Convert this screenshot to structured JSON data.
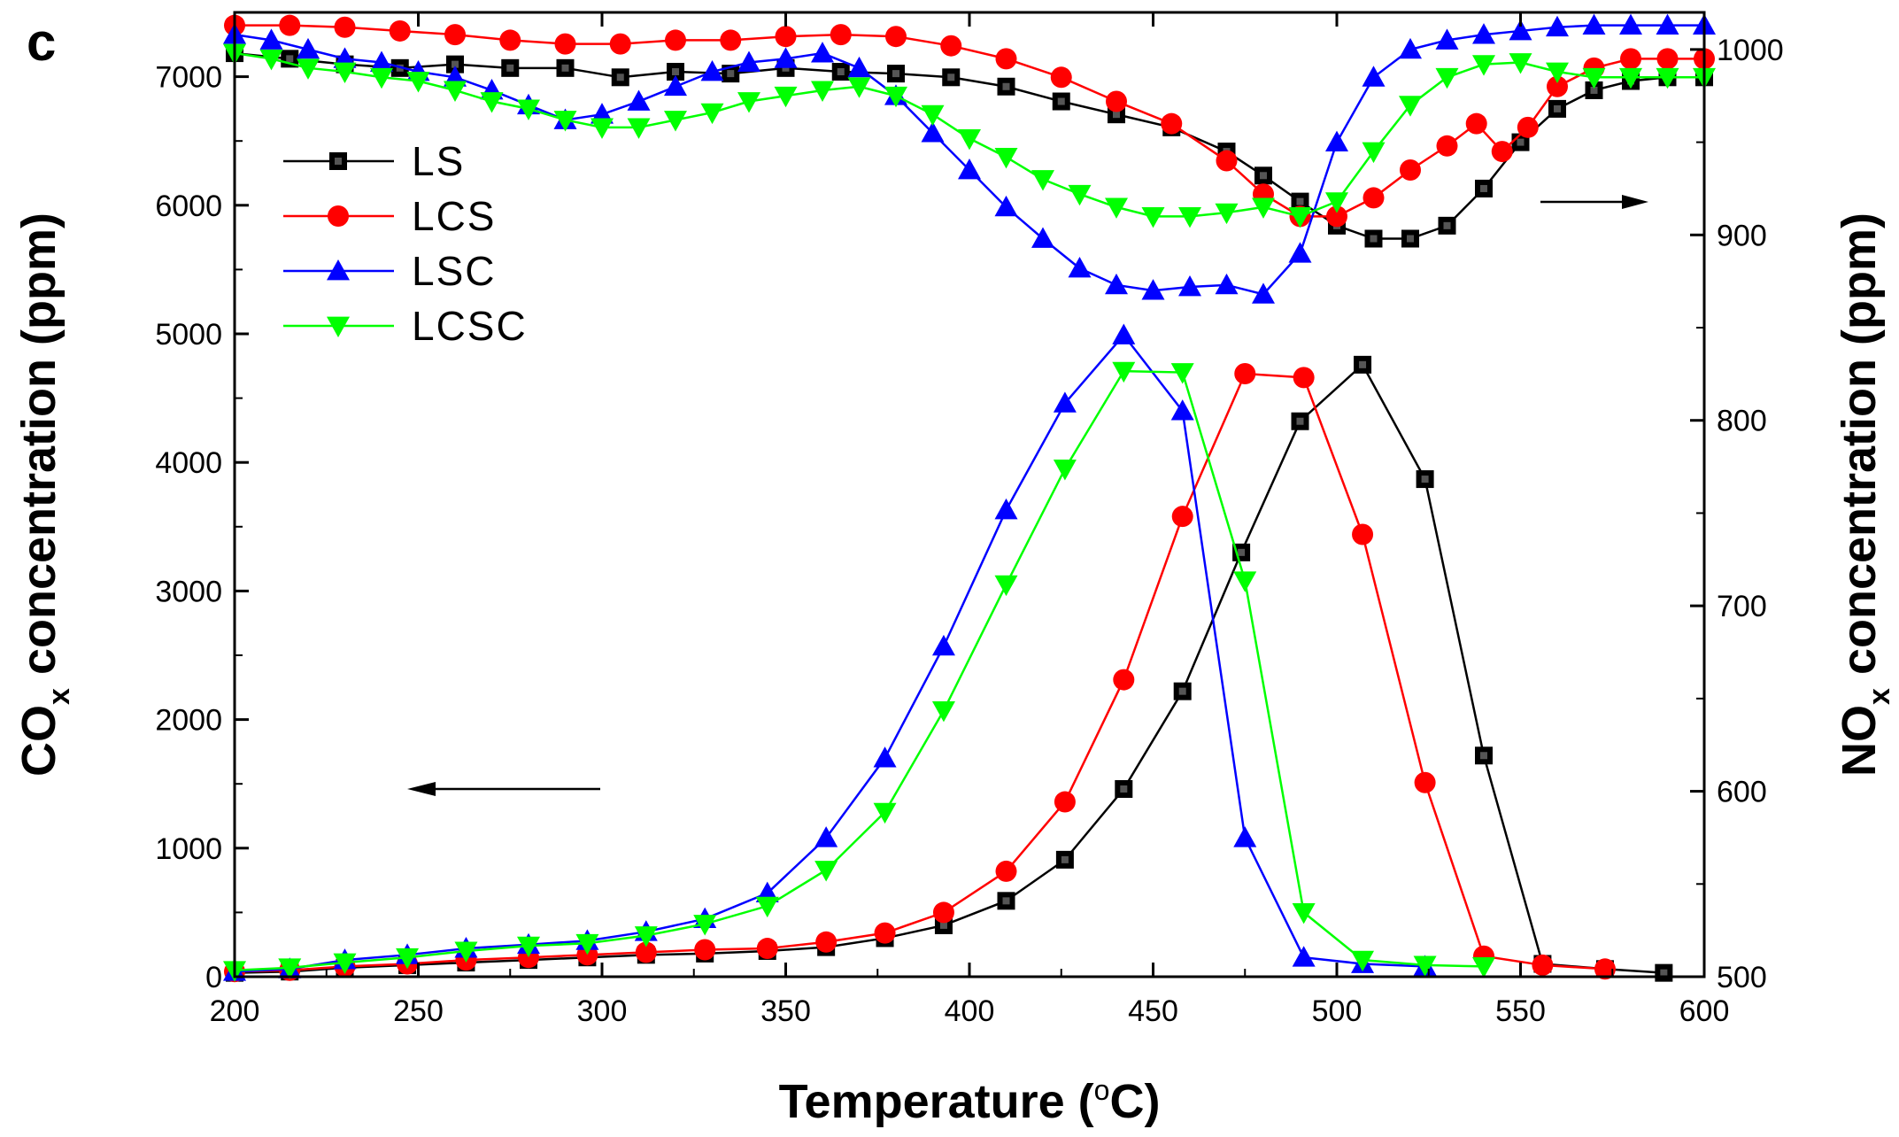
{
  "chart_data": {
    "type": "line",
    "panel_label": "c",
    "xlabel": {
      "main": "Temperature (",
      "sup": "o",
      "tail": "C)"
    },
    "ylabel_left": {
      "main": "CO",
      "sub": "x",
      "tail": " concentration (ppm)"
    },
    "ylabel_right": {
      "main": "NO",
      "sub": "x",
      "tail": " concentration (ppm)"
    },
    "xlim": [
      200,
      600
    ],
    "ylim_left": [
      0,
      7500
    ],
    "ylim_right": [
      500,
      1020
    ],
    "x_ticks": [
      200,
      250,
      300,
      350,
      400,
      450,
      500,
      550,
      600
    ],
    "y_left_ticks": [
      0,
      1000,
      2000,
      3000,
      4000,
      5000,
      6000,
      7000
    ],
    "y_right_ticks": [
      500,
      600,
      700,
      800,
      900,
      1000
    ],
    "legend_position": "top-left",
    "series": [
      {
        "name": "LS",
        "color": "#000000",
        "marker": "square",
        "cox": {
          "x": [
            200,
            215,
            230,
            247,
            263,
            280,
            296,
            312,
            328,
            345,
            361,
            377,
            393,
            410,
            426,
            442,
            458,
            474,
            490,
            507,
            524,
            540,
            556,
            573,
            589
          ],
          "y": [
            30,
            40,
            70,
            90,
            110,
            130,
            150,
            170,
            180,
            200,
            230,
            300,
            400,
            590,
            910,
            1460,
            2220,
            3300,
            4320,
            4760,
            3870,
            1720,
            100,
            60,
            30
          ]
        },
        "nox": {
          "x": [
            200,
            215,
            230,
            245,
            260,
            275,
            290,
            305,
            320,
            335,
            350,
            365,
            380,
            395,
            410,
            425,
            440,
            455,
            470,
            480,
            490,
            500,
            510,
            520,
            530,
            540,
            550,
            560,
            570,
            580,
            590,
            600
          ],
          "y": [
            998,
            995,
            992,
            990,
            992,
            990,
            990,
            985,
            988,
            987,
            990,
            988,
            987,
            985,
            980,
            972,
            965,
            958,
            945,
            932,
            918,
            905,
            898,
            898,
            905,
            925,
            950,
            968,
            978,
            983,
            985,
            985
          ]
        }
      },
      {
        "name": "LCS",
        "color": "#ff0000",
        "marker": "circle",
        "cox": {
          "x": [
            200,
            215,
            230,
            247,
            263,
            280,
            296,
            312,
            328,
            345,
            361,
            377,
            393,
            410,
            426,
            442,
            458,
            475,
            491,
            507,
            524,
            540,
            556,
            573
          ],
          "y": [
            40,
            50,
            80,
            100,
            130,
            150,
            170,
            190,
            210,
            220,
            270,
            340,
            500,
            820,
            1360,
            2310,
            3580,
            4690,
            4660,
            3440,
            1510,
            160,
            90,
            60
          ]
        },
        "nox": {
          "x": [
            200,
            215,
            230,
            245,
            260,
            275,
            290,
            305,
            320,
            335,
            350,
            365,
            380,
            395,
            410,
            425,
            440,
            455,
            470,
            480,
            490,
            500,
            510,
            520,
            530,
            538,
            545,
            552,
            560,
            570,
            580,
            590,
            600
          ],
          "y": [
            1013,
            1013,
            1012,
            1010,
            1008,
            1005,
            1003,
            1003,
            1005,
            1005,
            1007,
            1008,
            1007,
            1002,
            995,
            985,
            972,
            960,
            940,
            922,
            910,
            910,
            920,
            935,
            948,
            960,
            945,
            958,
            980,
            990,
            995,
            995,
            995
          ]
        }
      },
      {
        "name": "LSC",
        "color": "#0000ff",
        "marker": "triangle-up",
        "cox": {
          "x": [
            200,
            215,
            230,
            247,
            263,
            280,
            296,
            312,
            328,
            345,
            361,
            377,
            393,
            410,
            426,
            442,
            458,
            475,
            491,
            507,
            524
          ],
          "y": [
            40,
            60,
            130,
            170,
            220,
            250,
            280,
            350,
            450,
            650,
            1080,
            1700,
            2570,
            3630,
            4460,
            4990,
            4400,
            1080,
            150,
            100,
            80
          ]
        },
        "nox": {
          "x": [
            200,
            210,
            220,
            230,
            240,
            250,
            260,
            270,
            280,
            290,
            300,
            310,
            320,
            330,
            340,
            350,
            360,
            370,
            380,
            390,
            400,
            410,
            420,
            430,
            440,
            450,
            460,
            470,
            480,
            490,
            500,
            510,
            520,
            530,
            540,
            550,
            560,
            570,
            580,
            590,
            600
          ],
          "y": [
            1008,
            1005,
            1000,
            995,
            993,
            988,
            985,
            978,
            970,
            962,
            965,
            972,
            980,
            988,
            993,
            995,
            998,
            990,
            975,
            955,
            935,
            915,
            898,
            882,
            873,
            870,
            872,
            873,
            868,
            890,
            950,
            985,
            1000,
            1005,
            1008,
            1010,
            1012,
            1013,
            1013,
            1013,
            1013
          ]
        }
      },
      {
        "name": "LCSC",
        "color": "#00ff00",
        "marker": "triangle-down",
        "cox": {
          "x": [
            200,
            215,
            230,
            247,
            263,
            280,
            296,
            312,
            328,
            345,
            361,
            377,
            393,
            410,
            426,
            442,
            458,
            475,
            491,
            507,
            524,
            540
          ],
          "y": [
            50,
            70,
            110,
            150,
            200,
            240,
            260,
            320,
            410,
            550,
            830,
            1280,
            2070,
            3050,
            3950,
            4710,
            4700,
            3080,
            500,
            130,
            90,
            80
          ]
        },
        "nox": {
          "x": [
            200,
            210,
            220,
            230,
            240,
            250,
            260,
            270,
            280,
            290,
            300,
            310,
            320,
            330,
            340,
            350,
            360,
            370,
            380,
            390,
            400,
            410,
            420,
            430,
            440,
            450,
            460,
            470,
            480,
            490,
            500,
            510,
            520,
            530,
            540,
            550,
            560,
            570,
            580,
            590,
            600
          ],
          "y": [
            998,
            995,
            990,
            988,
            985,
            983,
            978,
            972,
            968,
            962,
            958,
            958,
            962,
            966,
            972,
            975,
            978,
            980,
            975,
            965,
            952,
            942,
            930,
            922,
            915,
            910,
            910,
            912,
            915,
            910,
            918,
            945,
            970,
            985,
            992,
            993,
            988,
            985,
            985,
            985,
            985
          ]
        }
      }
    ],
    "annotations": [
      {
        "text": "→",
        "meaning": "arrow pointing right (NOx on right axis)"
      },
      {
        "text": "←",
        "meaning": "arrow pointing left (COx on left axis)"
      }
    ]
  }
}
